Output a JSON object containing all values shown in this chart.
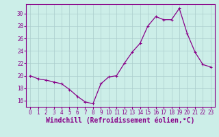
{
  "x": [
    0,
    1,
    2,
    3,
    4,
    5,
    6,
    7,
    8,
    9,
    10,
    11,
    12,
    13,
    14,
    15,
    16,
    17,
    18,
    19,
    20,
    21,
    22,
    23
  ],
  "y": [
    20.0,
    19.5,
    19.3,
    19.0,
    18.7,
    17.8,
    16.7,
    15.8,
    15.5,
    18.7,
    19.8,
    20.0,
    22.0,
    23.8,
    25.2,
    28.0,
    29.5,
    29.0,
    29.0,
    30.8,
    26.8,
    23.8,
    21.8,
    21.4
  ],
  "line_color": "#880088",
  "marker": "+",
  "marker_size": 3,
  "marker_linewidth": 0.8,
  "linewidth": 0.9,
  "bg_color": "#cceee8",
  "grid_color": "#aacccc",
  "xlabel": "Windchill (Refroidissement éolien,°C)",
  "ylabel": "",
  "xlim": [
    -0.5,
    23.5
  ],
  "ylim": [
    15.0,
    31.5
  ],
  "yticks": [
    16,
    18,
    20,
    22,
    24,
    26,
    28,
    30
  ],
  "xticks": [
    0,
    1,
    2,
    3,
    4,
    5,
    6,
    7,
    8,
    9,
    10,
    11,
    12,
    13,
    14,
    15,
    16,
    17,
    18,
    19,
    20,
    21,
    22,
    23
  ],
  "tick_label_color": "#880088",
  "tick_label_size": 5.5,
  "xlabel_size": 7,
  "xlabel_color": "#880088",
  "spine_color": "#880088"
}
